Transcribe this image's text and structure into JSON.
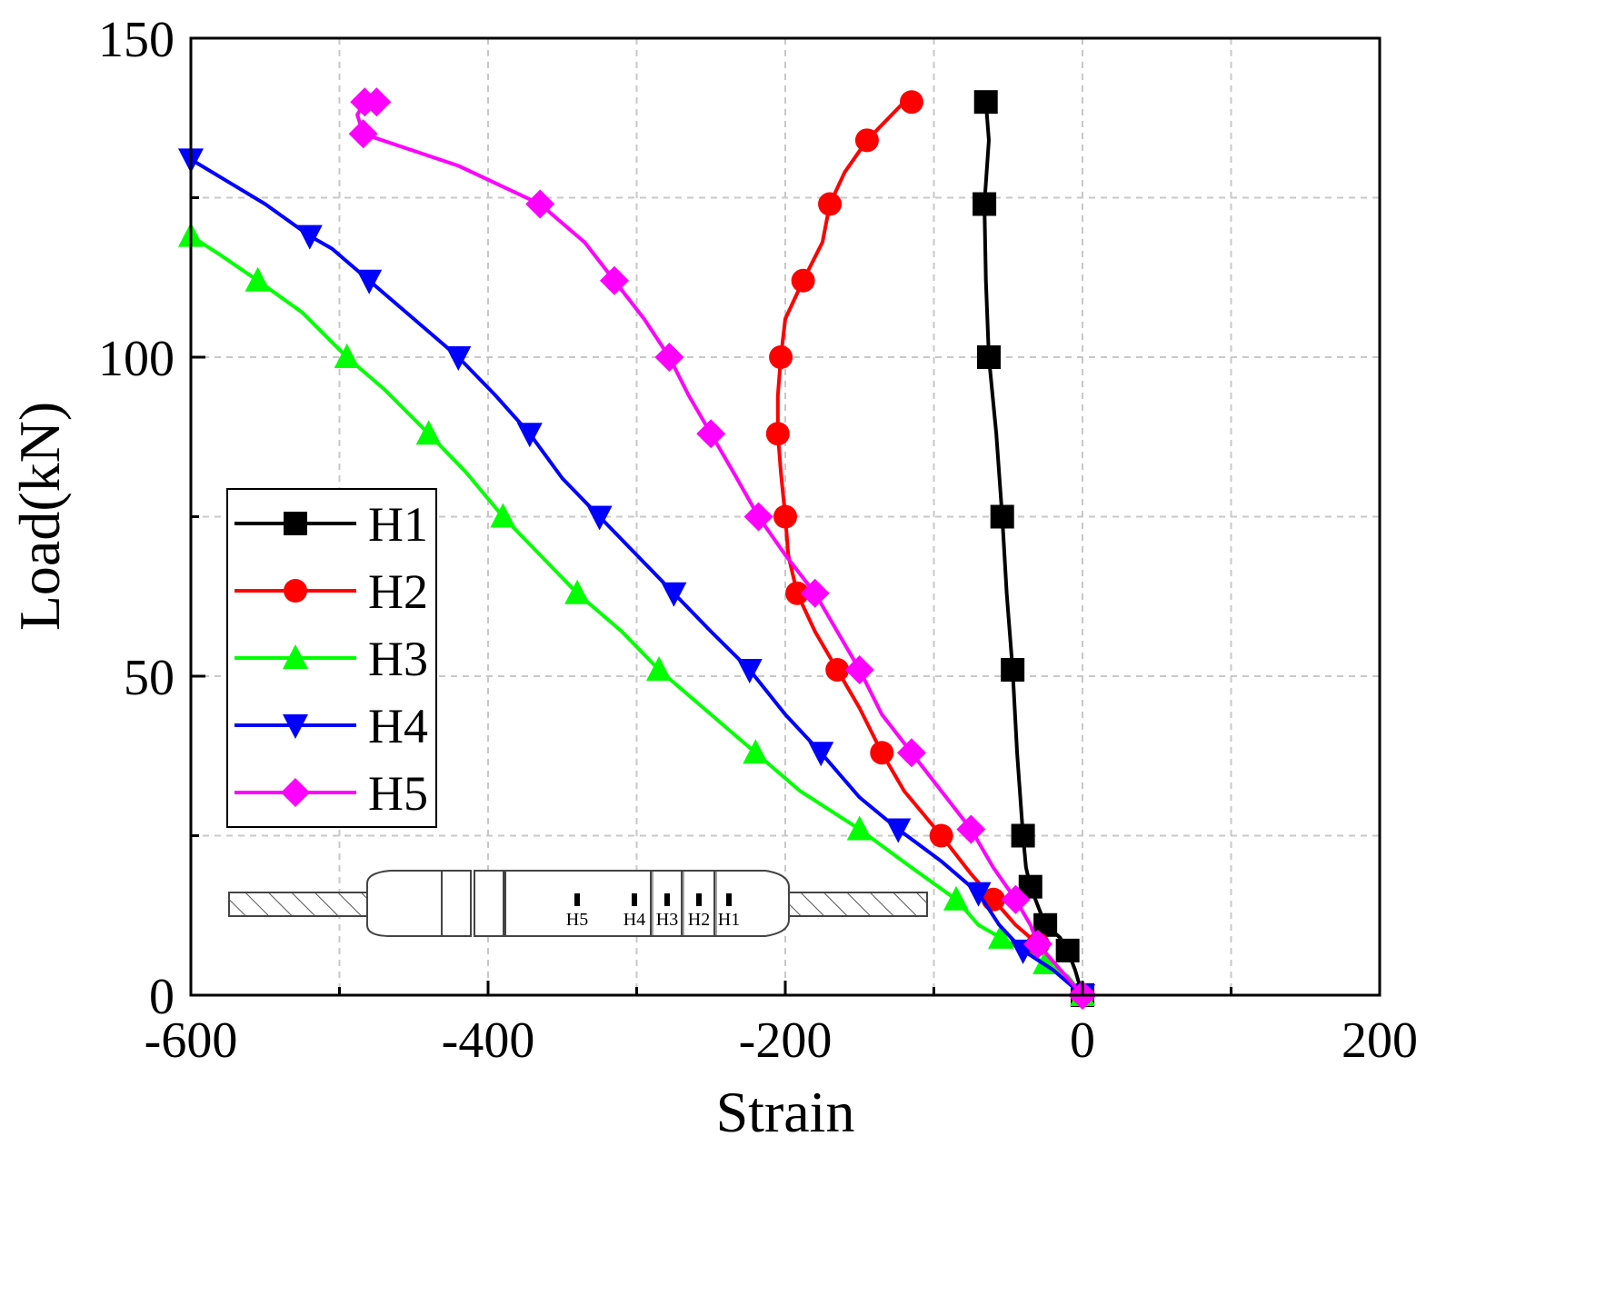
{
  "chart_data": {
    "type": "line",
    "title": "",
    "xlabel": "Strain",
    "ylabel": "Load(kN)",
    "xlim": [
      -600,
      200
    ],
    "ylim": [
      0,
      150
    ],
    "xticks": [
      -600,
      -400,
      -200,
      0,
      200
    ],
    "yticks": [
      0,
      50,
      100,
      150
    ],
    "minor_gridlines_x": [
      -500,
      -300,
      -100,
      100
    ],
    "minor_gridlines_y": [
      25,
      75,
      125
    ],
    "grid": true,
    "legend_position": "left-middle",
    "series": [
      {
        "name": "H1",
        "color": "#000000",
        "marker": "square",
        "points": [
          [
            0,
            0
          ],
          [
            -5,
            4
          ],
          [
            -10,
            7
          ],
          [
            -15,
            9
          ],
          [
            -25,
            11
          ],
          [
            -30,
            14
          ],
          [
            -35,
            17
          ],
          [
            -38,
            20
          ],
          [
            -40,
            25
          ],
          [
            -44,
            38
          ],
          [
            -47,
            51
          ],
          [
            -51,
            63
          ],
          [
            -54,
            75
          ],
          [
            -58,
            88
          ],
          [
            -63,
            100
          ],
          [
            -65,
            112
          ],
          [
            -66,
            124
          ],
          [
            -63,
            134
          ],
          [
            -65,
            140
          ]
        ]
      },
      {
        "name": "H2",
        "color": "#ff0000",
        "marker": "circle",
        "points": [
          [
            0,
            0
          ],
          [
            -15,
            4
          ],
          [
            -30,
            8
          ],
          [
            -45,
            11
          ],
          [
            -60,
            15
          ],
          [
            -75,
            19
          ],
          [
            -95,
            25
          ],
          [
            -120,
            32
          ],
          [
            -135,
            38
          ],
          [
            -150,
            45
          ],
          [
            -165,
            51
          ],
          [
            -180,
            57
          ],
          [
            -192,
            63
          ],
          [
            -198,
            69
          ],
          [
            -200,
            75
          ],
          [
            -203,
            82
          ],
          [
            -205,
            88
          ],
          [
            -205,
            94
          ],
          [
            -203,
            100
          ],
          [
            -200,
            106
          ],
          [
            -188,
            112
          ],
          [
            -175,
            118
          ],
          [
            -170,
            124
          ],
          [
            -160,
            129
          ],
          [
            -145,
            134
          ],
          [
            -120,
            140
          ],
          [
            -115,
            140
          ]
        ]
      },
      {
        "name": "H3",
        "color": "#00ff00",
        "marker": "triangle-up",
        "points": [
          [
            0,
            0
          ],
          [
            -10,
            3
          ],
          [
            -25,
            5
          ],
          [
            -40,
            7
          ],
          [
            -55,
            9
          ],
          [
            -70,
            11
          ],
          [
            -85,
            15
          ],
          [
            -115,
            20
          ],
          [
            -150,
            26
          ],
          [
            -190,
            32
          ],
          [
            -220,
            38
          ],
          [
            -250,
            44
          ],
          [
            -285,
            51
          ],
          [
            -310,
            57
          ],
          [
            -340,
            63
          ],
          [
            -365,
            69
          ],
          [
            -390,
            75
          ],
          [
            -415,
            82
          ],
          [
            -440,
            88
          ],
          [
            -470,
            95
          ],
          [
            -495,
            100
          ],
          [
            -525,
            107
          ],
          [
            -555,
            112
          ],
          [
            -580,
            116
          ],
          [
            -600,
            119
          ]
        ]
      },
      {
        "name": "H4",
        "color": "#0000ff",
        "marker": "triangle-down",
        "points": [
          [
            0,
            0
          ],
          [
            -20,
            4
          ],
          [
            -40,
            7
          ],
          [
            -56,
            11
          ],
          [
            -70,
            16
          ],
          [
            -95,
            21
          ],
          [
            -124,
            26
          ],
          [
            -150,
            31
          ],
          [
            -176,
            38
          ],
          [
            -200,
            44
          ],
          [
            -224,
            51
          ],
          [
            -250,
            57
          ],
          [
            -275,
            63
          ],
          [
            -300,
            69
          ],
          [
            -325,
            75
          ],
          [
            -350,
            81
          ],
          [
            -372,
            88
          ],
          [
            -395,
            94
          ],
          [
            -420,
            100
          ],
          [
            -450,
            106
          ],
          [
            -480,
            112
          ],
          [
            -505,
            117
          ],
          [
            -520,
            119
          ],
          [
            -550,
            124
          ],
          [
            -600,
            131
          ]
        ]
      },
      {
        "name": "H5",
        "color": "#ff00ff",
        "marker": "diamond",
        "points": [
          [
            0,
            0
          ],
          [
            -15,
            4
          ],
          [
            -30,
            8
          ],
          [
            -35,
            11
          ],
          [
            -45,
            15
          ],
          [
            -60,
            20
          ],
          [
            -75,
            26
          ],
          [
            -95,
            32
          ],
          [
            -115,
            38
          ],
          [
            -135,
            44
          ],
          [
            -150,
            51
          ],
          [
            -165,
            57
          ],
          [
            -180,
            63
          ],
          [
            -200,
            69
          ],
          [
            -218,
            75
          ],
          [
            -235,
            82
          ],
          [
            -250,
            88
          ],
          [
            -265,
            94
          ],
          [
            -278,
            100
          ],
          [
            -295,
            106
          ],
          [
            -315,
            112
          ],
          [
            -335,
            118
          ],
          [
            -365,
            124
          ],
          [
            -420,
            130
          ],
          [
            -484,
            135
          ],
          [
            -488,
            138
          ],
          [
            -483,
            140
          ],
          [
            -475,
            140
          ]
        ]
      }
    ],
    "inset": {
      "description": "specimen schematic",
      "gauge_labels": [
        "H5",
        "H4",
        "H3",
        "H2",
        "H1"
      ]
    }
  }
}
